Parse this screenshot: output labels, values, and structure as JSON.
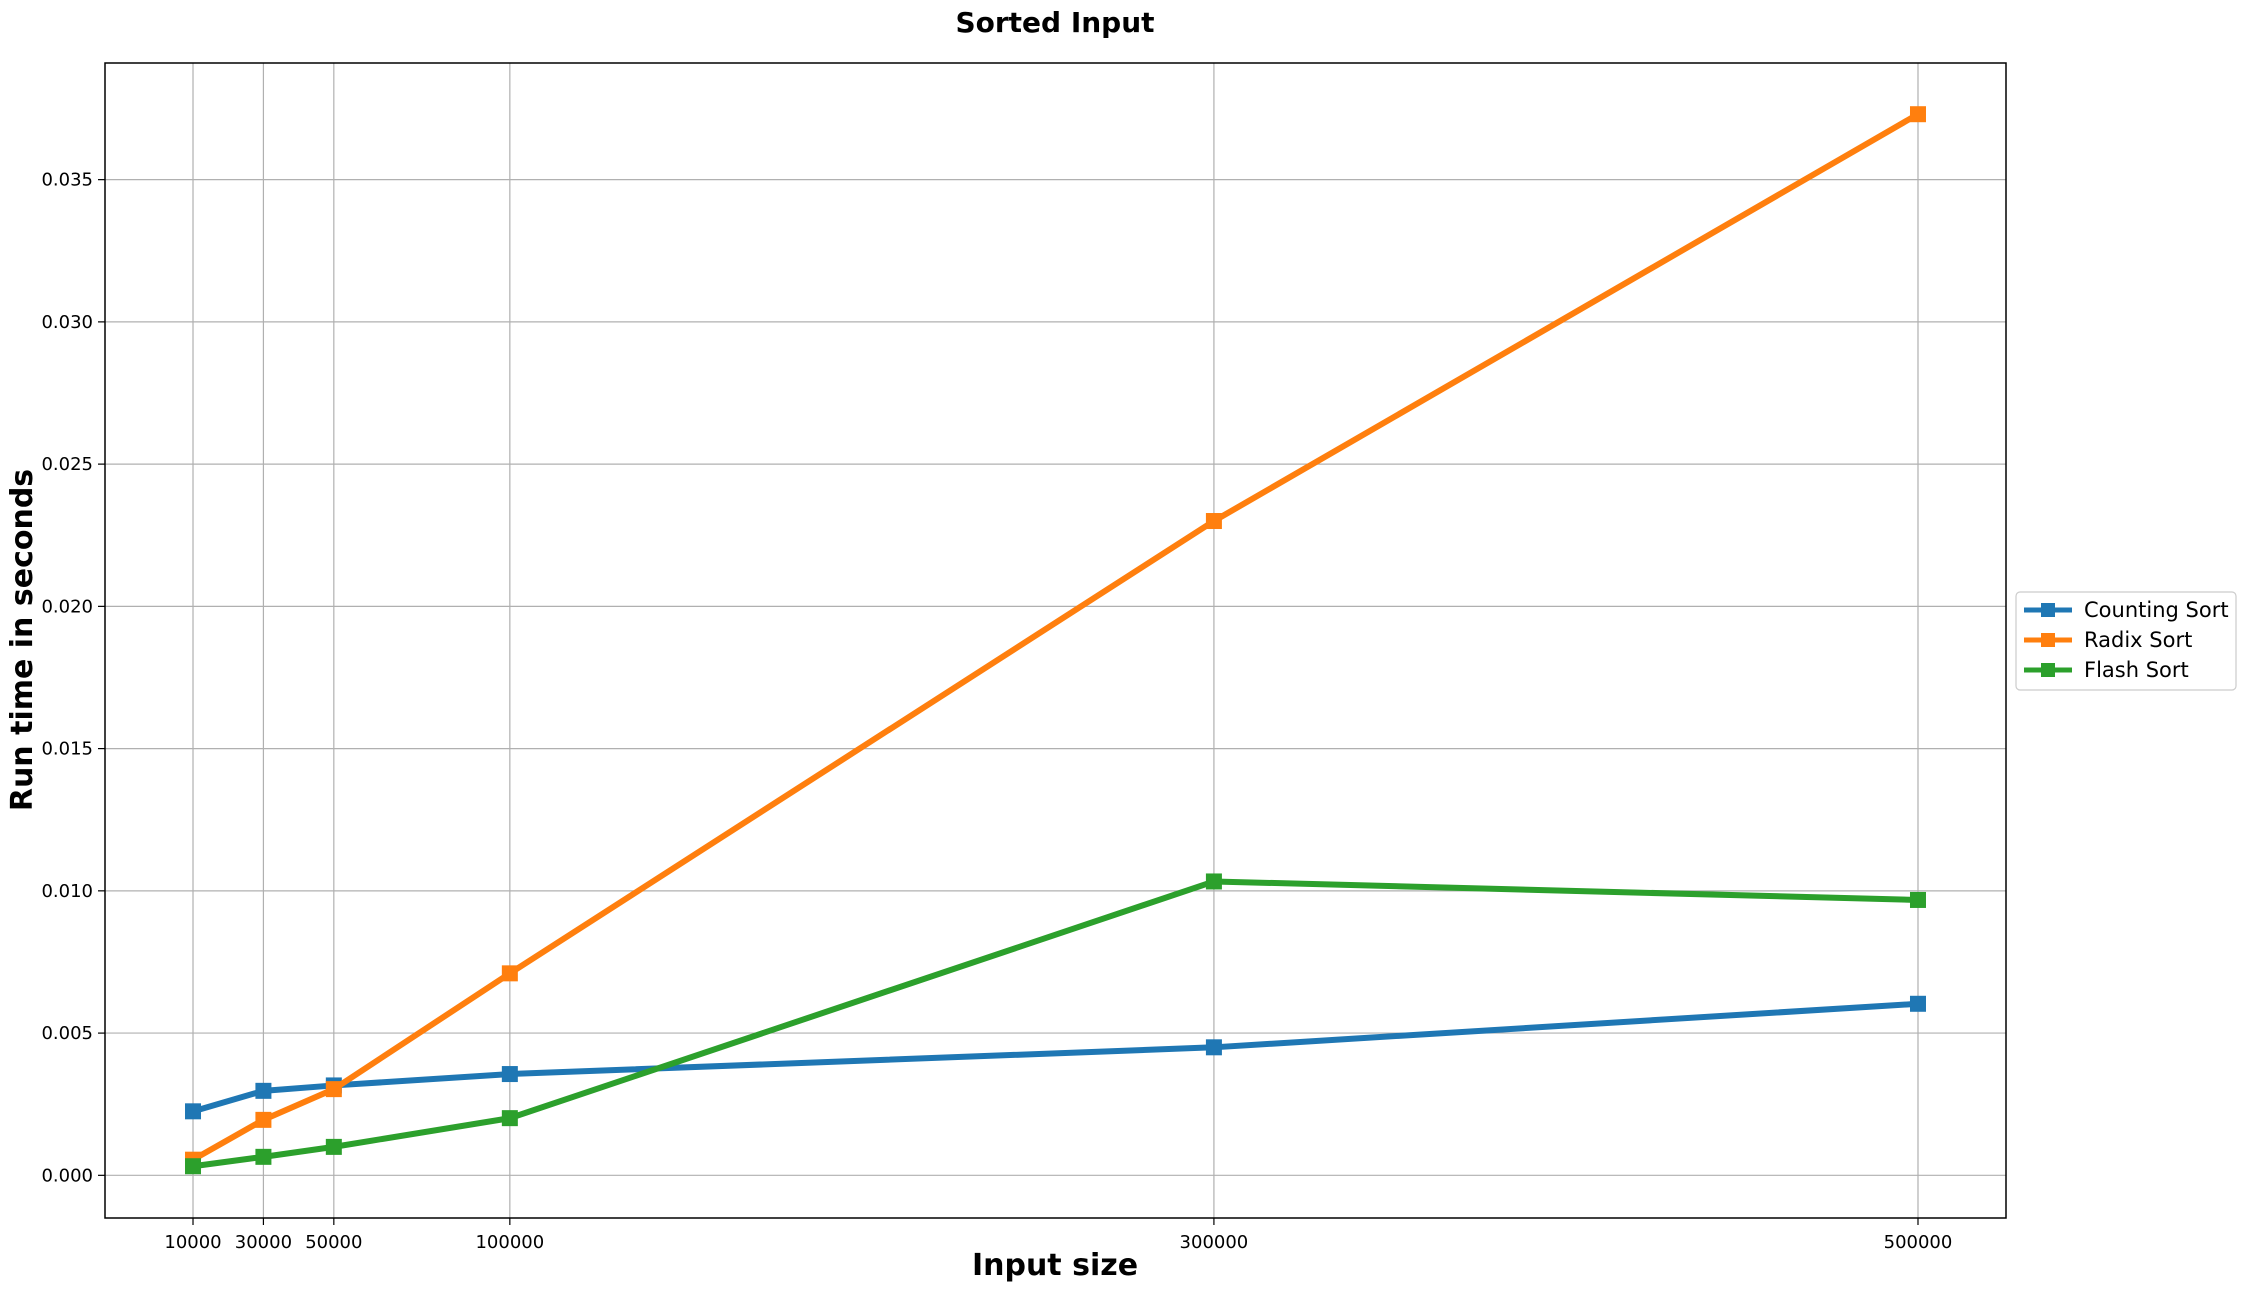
{
  "chart_data": {
    "type": "line",
    "title": "Sorted Input",
    "xlabel": "Input size",
    "ylabel": "Run time in seconds",
    "xlim": [
      -15000,
      525000
    ],
    "ylim": [
      -0.0015,
      0.0391
    ],
    "xticks": [
      10000,
      30000,
      50000,
      100000,
      300000,
      500000
    ],
    "xtick_labels": [
      "10000",
      "30000",
      "50000",
      "100000",
      "300000",
      "500000"
    ],
    "yticks": [
      0.0,
      0.005,
      0.01,
      0.015,
      0.02,
      0.025,
      0.03,
      0.035
    ],
    "ytick_labels": [
      "0.000",
      "0.005",
      "0.010",
      "0.015",
      "0.020",
      "0.025",
      "0.030",
      "0.035"
    ],
    "grid": true,
    "legend_position": "center-right outside",
    "x": [
      10000,
      30000,
      50000,
      100000,
      300000,
      500000
    ],
    "series": [
      {
        "name": "Counting Sort",
        "color": "#1f77b4",
        "marker": "square",
        "values": [
          0.00225,
          0.00297,
          0.00316,
          0.00356,
          0.0045,
          0.00603
        ]
      },
      {
        "name": "Radix Sort",
        "color": "#ff7f0e",
        "marker": "square",
        "values": [
          0.00055,
          0.00195,
          0.00303,
          0.0071,
          0.023,
          0.0373
        ]
      },
      {
        "name": "Flash Sort",
        "color": "#2ca02c",
        "marker": "square",
        "values": [
          0.00032,
          0.00065,
          0.001,
          0.00201,
          0.01033,
          0.00968
        ]
      }
    ]
  }
}
